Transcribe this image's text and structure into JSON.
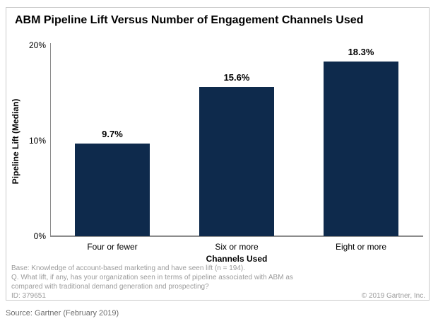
{
  "chart_data": {
    "type": "bar",
    "title": "ABM Pipeline Lift Versus Number of Engagement Channels Used",
    "categories": [
      "Four or fewer",
      "Six or more",
      "Eight or more"
    ],
    "values": [
      9.7,
      15.6,
      18.3
    ],
    "value_labels": [
      "9.7%",
      "15.6%",
      "18.3%"
    ],
    "xlabel": "Channels Used",
    "ylabel": "Pipeline Lift (Median)",
    "ylim": [
      0,
      20
    ],
    "yticks": [
      0,
      10,
      20
    ],
    "ytick_labels": [
      "0%",
      "10%",
      "20%"
    ],
    "grid": false,
    "legend": "none",
    "bar_color": "#0e2a4c"
  },
  "footnotes": {
    "base": "Base: Knowledge of account-based marketing and have seen lift (n = 194).",
    "question_line1": "Q. What lift, if any, has your organization seen in terms of pipeline associated with ABM as",
    "question_line2": "compared with traditional demand generation and prospecting?",
    "id": "ID: 379651",
    "copyright": "© 2019 Gartner, Inc."
  },
  "source": "Source: Gartner (February 2019)",
  "colors": {
    "bar": "#0e2a4c",
    "axis": "#8c8c8c",
    "panel_border": "#c9c9c9",
    "footnote_text": "#9b9b9b",
    "source_text": "#6e6e6e",
    "title_text": "#000000"
  }
}
